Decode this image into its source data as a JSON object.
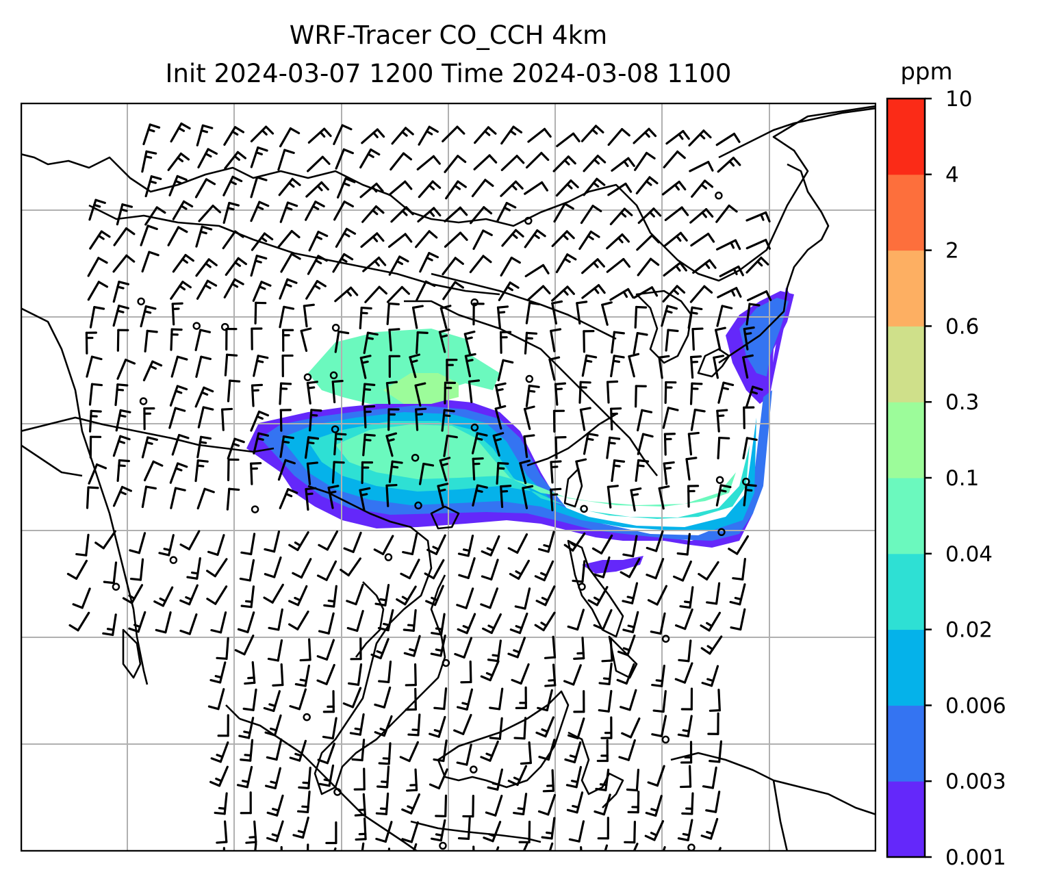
{
  "title": {
    "line1": "WRF-Tracer CO_CCH 4km",
    "line2": "Init 2024-03-07 1200 Time 2024-03-08 1100"
  },
  "colorbar": {
    "unit": "ppm",
    "levels": [
      "0.001",
      "0.003",
      "0.006",
      "0.02",
      "0.04",
      "0.1",
      "0.3",
      "0.6",
      "2",
      "4",
      "10"
    ],
    "colors": [
      "#6428fa",
      "#3474f2",
      "#05b2ea",
      "#2ee0d4",
      "#6bf9be",
      "#9cfc9a",
      "#cfe08a",
      "#fdaf62",
      "#fd6f3c",
      "#fb2b17"
    ]
  },
  "map": {
    "gridlines": true,
    "coastline_color": "#000000",
    "barb_color": "#000000",
    "tracer_field": "CO_CCH"
  }
}
